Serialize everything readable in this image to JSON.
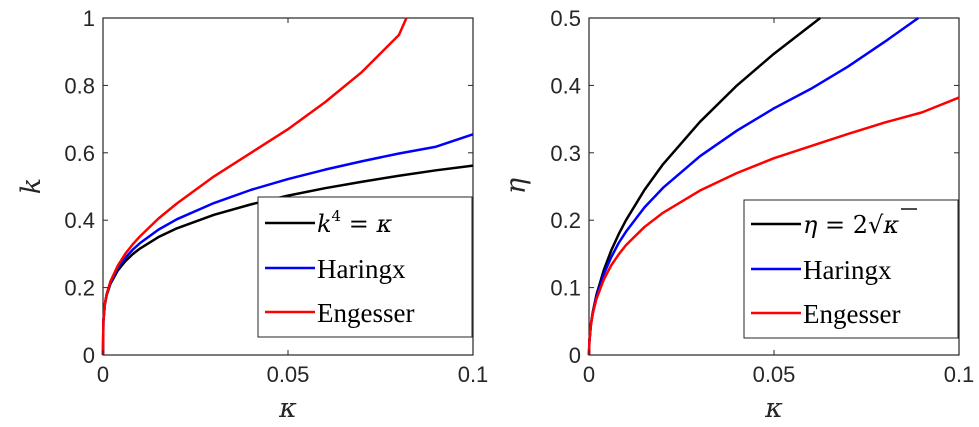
{
  "chart_data": [
    {
      "type": "line",
      "xlabel": "κ",
      "ylabel": "k",
      "xlim": [
        0,
        0.1
      ],
      "ylim": [
        0,
        1
      ],
      "xticks": [
        "0",
        "0.05",
        "0.1"
      ],
      "yticks": [
        "0",
        "0.2",
        "0.4",
        "0.6",
        "0.8",
        "1"
      ],
      "grid": false,
      "legend_position": "bottom-right",
      "series": [
        {
          "name": "k⁴ = κ",
          "color": "#000000",
          "x": [
            0,
            0.0001,
            0.0005,
            0.001,
            0.002,
            0.004,
            0.006,
            0.008,
            0.01,
            0.015,
            0.02,
            0.03,
            0.04,
            0.05,
            0.06,
            0.07,
            0.08,
            0.09,
            0.1
          ],
          "y": [
            0,
            0.1,
            0.15,
            0.178,
            0.211,
            0.251,
            0.278,
            0.299,
            0.316,
            0.35,
            0.376,
            0.416,
            0.447,
            0.473,
            0.495,
            0.514,
            0.532,
            0.548,
            0.562
          ]
        },
        {
          "name": "Haringx",
          "color": "#0000ff",
          "x": [
            0,
            0.0001,
            0.0005,
            0.001,
            0.002,
            0.004,
            0.006,
            0.008,
            0.01,
            0.015,
            0.02,
            0.03,
            0.04,
            0.05,
            0.06,
            0.07,
            0.08,
            0.09,
            0.1
          ],
          "y": [
            0,
            0.1,
            0.151,
            0.18,
            0.215,
            0.258,
            0.288,
            0.312,
            0.332,
            0.372,
            0.403,
            0.451,
            0.49,
            0.522,
            0.55,
            0.575,
            0.598,
            0.618,
            0.655
          ]
        },
        {
          "name": "Engesser",
          "color": "#ff0000",
          "x": [
            0,
            0.0001,
            0.0005,
            0.001,
            0.002,
            0.004,
            0.006,
            0.008,
            0.01,
            0.015,
            0.02,
            0.03,
            0.04,
            0.05,
            0.06,
            0.07,
            0.08,
            0.082
          ],
          "y": [
            0,
            0.1,
            0.151,
            0.181,
            0.218,
            0.265,
            0.3,
            0.328,
            0.352,
            0.405,
            0.45,
            0.53,
            0.6,
            0.67,
            0.75,
            0.84,
            0.95,
            1.0
          ]
        }
      ]
    },
    {
      "type": "line",
      "xlabel": "κ",
      "ylabel": "η",
      "xlim": [
        0,
        0.1
      ],
      "ylim": [
        0,
        0.5
      ],
      "xticks": [
        "0",
        "0.05",
        "0.1"
      ],
      "yticks": [
        "0",
        "0.1",
        "0.2",
        "0.3",
        "0.4",
        "0.5"
      ],
      "grid": false,
      "legend_position": "bottom-right",
      "series": [
        {
          "name": "η = 2√κ",
          "color": "#000000",
          "x": [
            0,
            0.0001,
            0.0005,
            0.001,
            0.002,
            0.004,
            0.006,
            0.008,
            0.01,
            0.015,
            0.02,
            0.03,
            0.04,
            0.05,
            0.0625
          ],
          "y": [
            0,
            0.02,
            0.045,
            0.063,
            0.089,
            0.126,
            0.155,
            0.179,
            0.2,
            0.245,
            0.283,
            0.346,
            0.4,
            0.447,
            0.5
          ]
        },
        {
          "name": "Haringx",
          "color": "#0000ff",
          "x": [
            0,
            0.0001,
            0.0005,
            0.001,
            0.002,
            0.004,
            0.006,
            0.008,
            0.01,
            0.015,
            0.02,
            0.03,
            0.04,
            0.05,
            0.06,
            0.07,
            0.08,
            0.089
          ],
          "y": [
            0,
            0.02,
            0.044,
            0.062,
            0.086,
            0.12,
            0.145,
            0.166,
            0.183,
            0.219,
            0.248,
            0.295,
            0.333,
            0.366,
            0.395,
            0.428,
            0.465,
            0.5
          ]
        },
        {
          "name": "Engesser",
          "color": "#ff0000",
          "x": [
            0,
            0.0001,
            0.0005,
            0.001,
            0.002,
            0.004,
            0.006,
            0.008,
            0.01,
            0.015,
            0.02,
            0.03,
            0.04,
            0.05,
            0.06,
            0.07,
            0.08,
            0.09,
            0.1
          ],
          "y": [
            0,
            0.02,
            0.044,
            0.061,
            0.083,
            0.112,
            0.133,
            0.149,
            0.163,
            0.19,
            0.211,
            0.244,
            0.27,
            0.292,
            0.31,
            0.328,
            0.345,
            0.36,
            0.382
          ]
        }
      ]
    }
  ]
}
